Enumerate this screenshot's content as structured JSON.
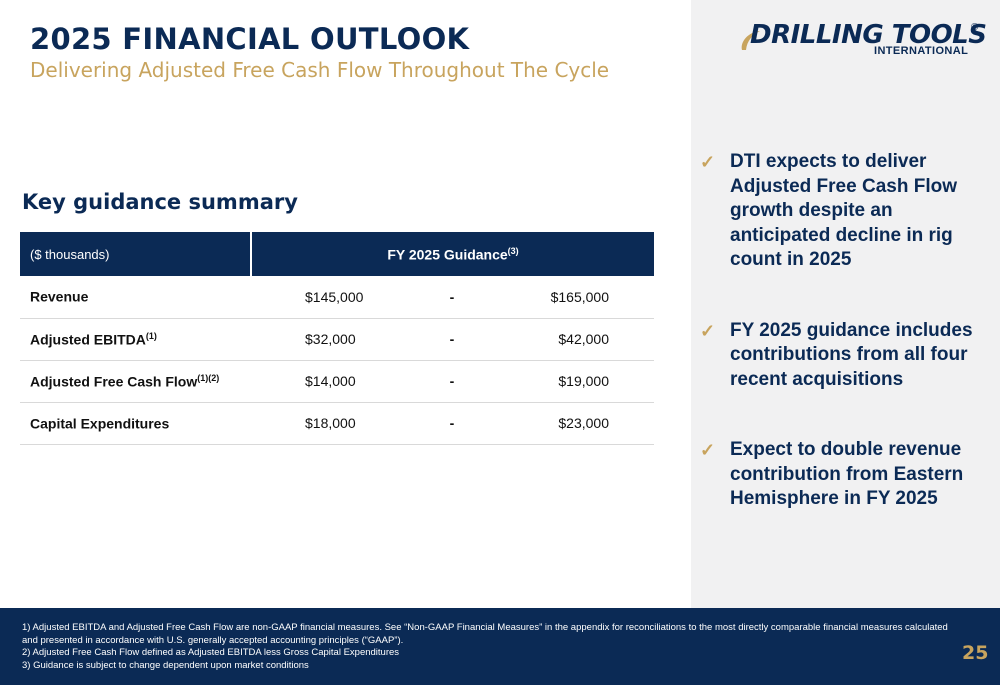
{
  "header": {
    "title": "2025 FINANCIAL OUTLOOK",
    "subtitle": "Delivering Adjusted Free Cash Flow Throughout The Cycle"
  },
  "logo": {
    "name": "DRILLING TOOLS",
    "sub": "INTERNATIONAL",
    "reg": "®"
  },
  "section_heading": "Key guidance summary",
  "table": {
    "units_label": "($ thousands)",
    "guidance_label": "FY 2025 Guidance",
    "guidance_sup": "(3)",
    "rows": [
      {
        "metric": "Revenue",
        "sup": "",
        "low": "$145,000",
        "dash": "-",
        "high": "$165,000"
      },
      {
        "metric": "Adjusted EBITDA",
        "sup": "(1)",
        "low": "$32,000",
        "dash": "-",
        "high": "$42,000"
      },
      {
        "metric": "Adjusted Free Cash Flow",
        "sup": "(1)(2)",
        "low": "$14,000",
        "dash": "-",
        "high": "$19,000"
      },
      {
        "metric": "Capital Expenditures",
        "sup": "",
        "low": "$18,000",
        "dash": "-",
        "high": "$23,000"
      }
    ]
  },
  "bullets": [
    "DTI expects to deliver Adjusted Free Cash Flow growth despite an anticipated decline in rig count in 2025",
    "FY 2025 guidance includes contributions from all four recent acquisitions",
    "Expect to double revenue contribution from Eastern Hemisphere in FY 2025"
  ],
  "check_icon": "checkmark-icon",
  "footnotes": [
    "1) Adjusted EBITDA and Adjusted Free Cash Flow are non-GAAP financial measures. See “Non-GAAP Financial Measures” in the appendix for reconciliations to the most directly comparable financial measures calculated and presented in accordance with U.S. generally accepted accounting principles (“GAAP”).",
    "2) Adjusted Free Cash Flow defined as Adjusted EBITDA less Gross Capital Expenditures",
    "3) Guidance is subject to change dependent upon market conditions"
  ],
  "page_number": "25",
  "colors": {
    "navy": "#0b2a55",
    "gold": "#c8a45e",
    "panel": "#f1f1f2"
  }
}
